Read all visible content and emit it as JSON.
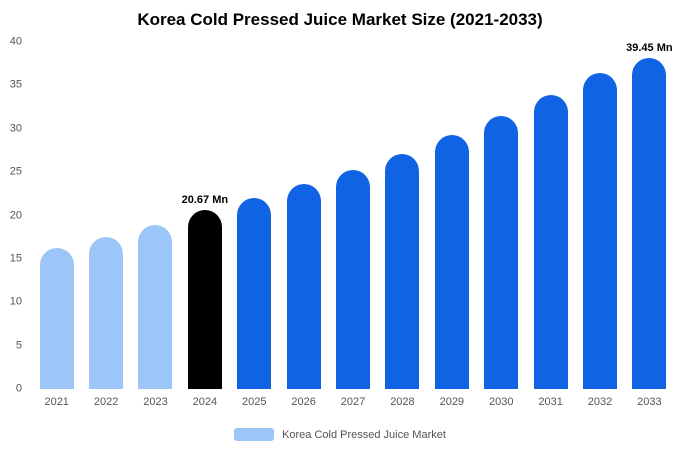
{
  "title": "Korea Cold Pressed Juice Market Size (2021-2033)",
  "chart_data": {
    "type": "bar",
    "title": "Korea Cold Pressed Juice Market Size (2021-2033)",
    "categories": [
      "2021",
      "2022",
      "2023",
      "2024",
      "2025",
      "2026",
      "2027",
      "2028",
      "2029",
      "2030",
      "2031",
      "2032",
      "2033"
    ],
    "values": [
      16.2,
      17.5,
      18.85,
      20.67,
      22.0,
      23.6,
      25.3,
      27.1,
      29.3,
      31.5,
      33.9,
      36.4,
      39.45
    ],
    "bar_colors": [
      "#9CC6F8",
      "#9CC6F8",
      "#9CC6F8",
      "#000000",
      "#1064E3",
      "#1064E3",
      "#1064E3",
      "#1064E3",
      "#1064E3",
      "#1064E3",
      "#1064E3",
      "#1064E3",
      "#1064E3"
    ],
    "annotations": [
      {
        "category": "2024",
        "text": "20.67 Mn"
      },
      {
        "category": "2033",
        "text": "39.45 Mn"
      }
    ],
    "xlabel": "",
    "ylabel": "",
    "ylim": [
      0,
      40
    ],
    "yticks": [
      0,
      5,
      10,
      15,
      20,
      25,
      30,
      35,
      40
    ],
    "grid": false,
    "legend_position": "bottom",
    "legend": [
      {
        "label": "Korea Cold Pressed Juice Market",
        "color": "#9CC6F8"
      }
    ]
  }
}
